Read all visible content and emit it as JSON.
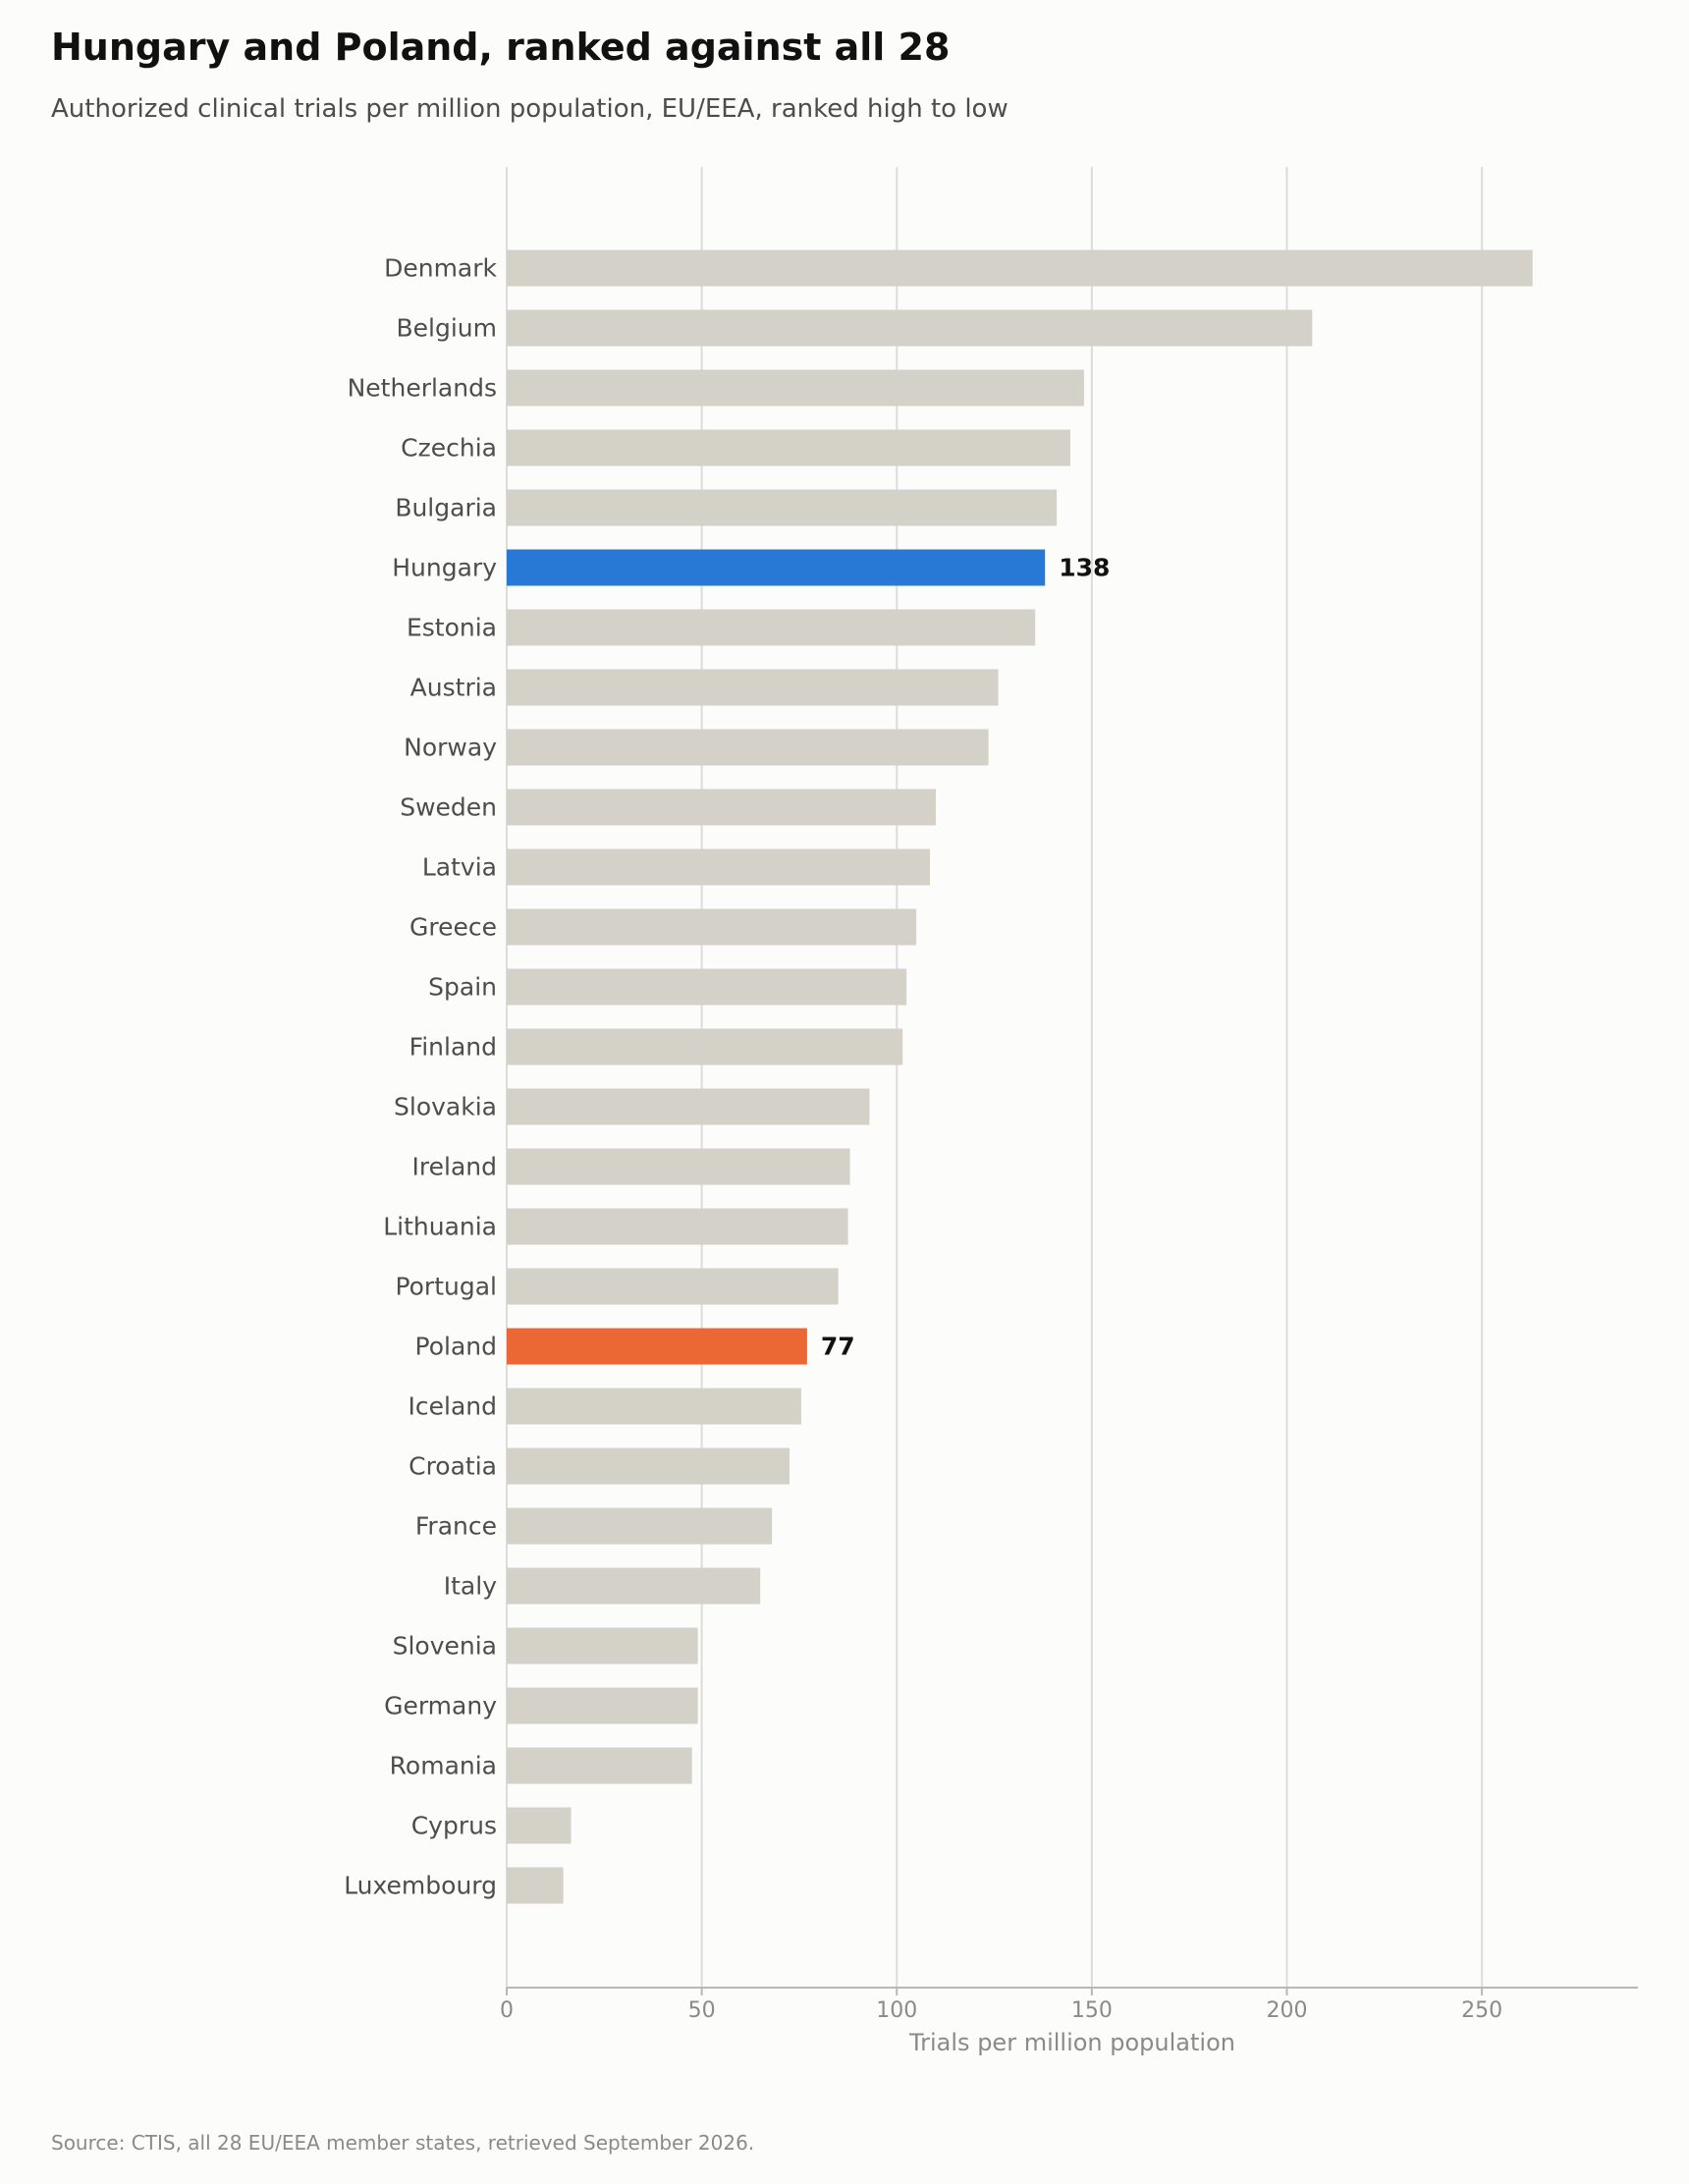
{
  "header": {
    "title": "Hungary and Poland, ranked against all 28",
    "subtitle": "Authorized clinical trials per million population, EU/EEA, ranked high to low"
  },
  "footer": {
    "source": "Source: CTIS, all 28 EU/EEA member states, retrieved September 2026."
  },
  "colors": {
    "background": "#fcfcfa",
    "default_bar": "#d4d1c9",
    "hungary_bar": "#2878d6",
    "poland_bar": "#eb6835",
    "gridline": "#dcdcdc",
    "axis_line": "#b8b8b8"
  },
  "chart_data": {
    "type": "bar",
    "orientation": "horizontal",
    "title": "Hungary and Poland, ranked against all 28",
    "subtitle": "Authorized clinical trials per million population, EU/EEA, ranked high to low",
    "xlabel": "Trials per million population",
    "ylabel": "",
    "xlim": [
      0,
      290
    ],
    "xticks": [
      0,
      50,
      100,
      150,
      200,
      250
    ],
    "grid": "vertical",
    "categories": [
      "Denmark",
      "Belgium",
      "Netherlands",
      "Czechia",
      "Bulgaria",
      "Hungary",
      "Estonia",
      "Austria",
      "Norway",
      "Sweden",
      "Latvia",
      "Greece",
      "Spain",
      "Finland",
      "Slovakia",
      "Ireland",
      "Lithuania",
      "Portugal",
      "Poland",
      "Iceland",
      "Croatia",
      "France",
      "Italy",
      "Slovenia",
      "Germany",
      "Romania",
      "Cyprus",
      "Luxembourg"
    ],
    "values": [
      263,
      206.5,
      148,
      144.5,
      141,
      138,
      135.5,
      126,
      123.5,
      110,
      108.5,
      105,
      102.5,
      101.5,
      93,
      88,
      87.5,
      85,
      77,
      75.5,
      72.5,
      68,
      65,
      49,
      49,
      47.5,
      16.5,
      14.5
    ],
    "highlights": [
      {
        "category": "Hungary",
        "color": "#2878d6",
        "label": "138"
      },
      {
        "category": "Poland",
        "color": "#eb6835",
        "label": "77"
      }
    ]
  }
}
